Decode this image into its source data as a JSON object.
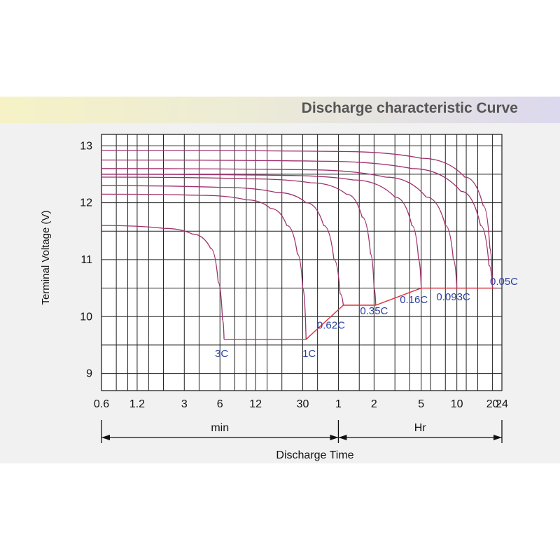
{
  "header": {
    "title": "Discharge characteristic Curve"
  },
  "chart_data": {
    "type": "line",
    "title": "Discharge characteristic Curve",
    "xlabel": "Discharge Time",
    "ylabel": "Terminal Voltage  (V)",
    "x_scale": "log",
    "x_units_note": "minutes (min region) then hours (Hr region)",
    "x_ticks": [
      {
        "label": "0.6",
        "minutes": 0.6
      },
      {
        "label": "1.2",
        "minutes": 1.2
      },
      {
        "label": "3",
        "minutes": 3
      },
      {
        "label": "6",
        "minutes": 6
      },
      {
        "label": "12",
        "minutes": 12
      },
      {
        "label": "30",
        "minutes": 30
      },
      {
        "label": "1",
        "minutes": 60
      },
      {
        "label": "2",
        "minutes": 120
      },
      {
        "label": "5",
        "minutes": 300
      },
      {
        "label": "10",
        "minutes": 600
      },
      {
        "label": "20",
        "minutes": 1200
      },
      {
        "label": "24",
        "minutes": 1440
      }
    ],
    "y_ticks": [
      9,
      10,
      11,
      12,
      13
    ],
    "ylim": [
      8.7,
      13.2
    ],
    "x_regions": [
      {
        "label": "min",
        "from_minutes": 0.6,
        "to_minutes": 60
      },
      {
        "label": "Hr",
        "from_minutes": 60,
        "to_minutes": 1440
      }
    ],
    "grid": true,
    "series": [
      {
        "name": "3C",
        "color": "#a0306e",
        "points": [
          [
            0.6,
            11.6
          ],
          [
            2.0,
            11.55
          ],
          [
            3.5,
            11.45
          ],
          [
            5.0,
            11.2
          ],
          [
            5.8,
            10.6
          ],
          [
            6.3,
            9.95
          ],
          [
            6.5,
            9.6
          ]
        ]
      },
      {
        "name": "1C",
        "color": "#a0306e",
        "points": [
          [
            0.6,
            12.15
          ],
          [
            4,
            12.13
          ],
          [
            10,
            12.05
          ],
          [
            16,
            11.9
          ],
          [
            22,
            11.6
          ],
          [
            27,
            11.1
          ],
          [
            30,
            10.5
          ],
          [
            32,
            9.6
          ]
        ]
      },
      {
        "name": "0.62C",
        "color": "#a0306e",
        "points": [
          [
            0.6,
            12.3
          ],
          [
            6,
            12.27
          ],
          [
            18,
            12.18
          ],
          [
            32,
            12.0
          ],
          [
            45,
            11.6
          ],
          [
            55,
            11.0
          ],
          [
            62,
            10.4
          ],
          [
            66,
            10.2
          ]
        ]
      },
      {
        "name": "0.35C",
        "color": "#a0306e",
        "points": [
          [
            0.6,
            12.45
          ],
          [
            10,
            12.42
          ],
          [
            35,
            12.35
          ],
          [
            70,
            12.15
          ],
          [
            95,
            11.75
          ],
          [
            112,
            11.1
          ],
          [
            120,
            10.5
          ],
          [
            124,
            10.2
          ]
        ]
      },
      {
        "name": "0.16C",
        "color": "#a0306e",
        "points": [
          [
            0.6,
            12.5
          ],
          [
            20,
            12.48
          ],
          [
            80,
            12.4
          ],
          [
            180,
            12.1
          ],
          [
            250,
            11.6
          ],
          [
            285,
            11.0
          ],
          [
            300,
            10.5
          ]
        ]
      },
      {
        "name": "0.093C",
        "color": "#a0306e",
        "points": [
          [
            0.6,
            12.6
          ],
          [
            30,
            12.58
          ],
          [
            150,
            12.45
          ],
          [
            330,
            12.1
          ],
          [
            480,
            11.6
          ],
          [
            560,
            11.0
          ],
          [
            600,
            10.5
          ]
        ]
      },
      {
        "name": "0.05C",
        "color": "#a0306e",
        "points": [
          [
            0.6,
            12.75
          ],
          [
            40,
            12.73
          ],
          [
            250,
            12.6
          ],
          [
            650,
            12.2
          ],
          [
            950,
            11.6
          ],
          [
            1120,
            10.9
          ],
          [
            1200,
            10.5
          ]
        ]
      },
      {
        "name": "0.05C-top",
        "color": "#a0306e",
        "points": [
          [
            0.6,
            12.92
          ],
          [
            60,
            12.9
          ],
          [
            300,
            12.78
          ],
          [
            700,
            12.45
          ],
          [
            1000,
            11.95
          ],
          [
            1140,
            11.2
          ],
          [
            1200,
            10.5
          ]
        ]
      }
    ],
    "cutoff_line": {
      "color": "#e0303a",
      "points": [
        [
          6.5,
          9.6
        ],
        [
          32,
          9.6
        ],
        [
          66,
          10.2
        ],
        [
          124,
          10.2
        ],
        [
          300,
          10.5
        ],
        [
          600,
          10.5
        ],
        [
          1200,
          10.5
        ],
        [
          1300,
          10.5
        ]
      ]
    },
    "annotations": [
      {
        "label": "3C",
        "x_minutes": 6.2,
        "y": 9.35
      },
      {
        "label": "1C",
        "x_minutes": 34,
        "y": 9.35
      },
      {
        "label": "0.62C",
        "x_minutes": 52,
        "y": 9.85
      },
      {
        "label": "0.35C",
        "x_minutes": 120,
        "y": 10.1
      },
      {
        "label": "0.16C",
        "x_minutes": 260,
        "y": 10.3
      },
      {
        "label": "0.093C",
        "x_minutes": 560,
        "y": 10.35
      },
      {
        "label": "0.05C",
        "x_minutes": 1500,
        "y": 10.62
      }
    ],
    "annotation_color": "#2b3fa0"
  }
}
